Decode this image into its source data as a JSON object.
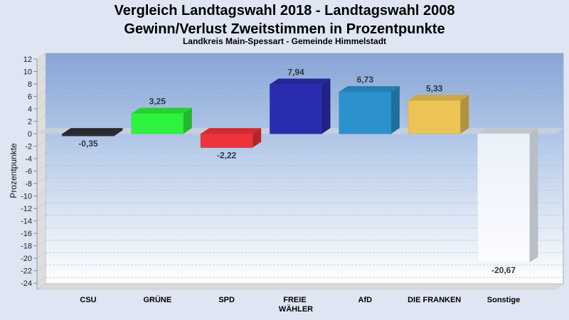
{
  "page": {
    "background": "#dfe5f2"
  },
  "chart_data": {
    "type": "bar",
    "title": [
      "Vergleich Landtagswahl 2018 - Landtagswahl 2008",
      "Gewinn/Verlust Zweitstimmen in Prozentpunkte"
    ],
    "subtitle": "Landkreis Main-Spessart - Gemeinde Himmelstadt",
    "xlabel": "",
    "ylabel": "Prozentpunkte",
    "ylim": [
      -25,
      12
    ],
    "yticks": [
      12,
      10,
      8,
      6,
      4,
      2,
      0,
      -2,
      -4,
      -6,
      -8,
      -10,
      -12,
      -14,
      -16,
      -18,
      -20,
      -22,
      -24
    ],
    "grid": true,
    "legend": "none",
    "categories": [
      "CSU",
      "GRÜNE",
      "SPD",
      "FREIE WÄHLER",
      "AfD",
      "DIE FRANKEN",
      "Sonstige"
    ],
    "values": [
      -0.35,
      3.25,
      -2.22,
      7.94,
      6.73,
      5.33,
      -20.67
    ],
    "data_labels": [
      "-0,35",
      "3,25",
      "-2,22",
      "7,94",
      "6,73",
      "5,33",
      "-20,67"
    ],
    "colors": [
      "#2d3036",
      "#2ef23e",
      "#ee333b",
      "#2b2db0",
      "#2b92cd",
      "#ecc355",
      "#f3f6fc"
    ]
  }
}
